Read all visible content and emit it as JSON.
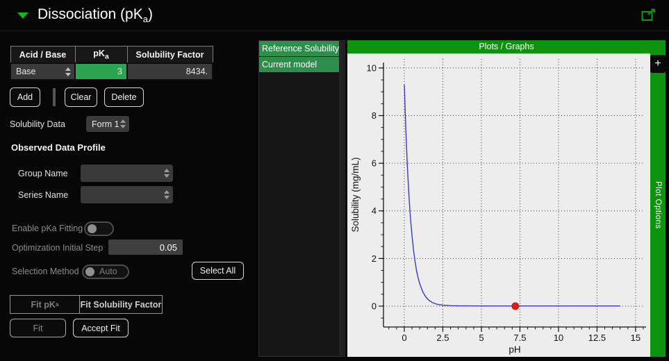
{
  "window": {
    "title_prefix": "Dissociation (pK",
    "title_sub": "a",
    "title_suffix": ")"
  },
  "left_panel": {
    "table": {
      "col_acid_base": "Acid / Base",
      "col_pka_prefix": "pK",
      "col_pka_sub": "a",
      "col_solubility_factor": "Solubility Factor",
      "rows": [
        {
          "acid_base": "Base",
          "pka": "3",
          "solubility_factor": "8434."
        }
      ]
    },
    "add_button": "Add",
    "clear_button": "Clear",
    "delete_button": "Delete",
    "solubility_data_label": "Solubility Data",
    "solubility_data_value": "Form 1",
    "observed_heading": "Observed Data Profile",
    "group_name_label": "Group Name",
    "group_name_value": "",
    "series_name_label": "Series Name",
    "series_name_value": "",
    "enable_pka_label": "Enable pKa Fitting",
    "opt_step_label": "Optimization Initial Step",
    "opt_step_value": "0.05",
    "selection_method_label": "Selection Method",
    "selection_method_value": "Auto",
    "select_all_button": "Select All",
    "fit_pka_tab_prefix": "Fit pK",
    "fit_pka_tab_sub": "a",
    "fit_sf_tab": "Fit Solubility Factor",
    "fit_button": "Fit",
    "accept_fit_button": "Accept Fit"
  },
  "model_list": {
    "items": [
      {
        "label": "Reference Solubility",
        "selected": true
      },
      {
        "label": "Current model",
        "selected": true
      }
    ]
  },
  "plot_panel": {
    "header": "Plots / Graphs",
    "add_plot_button": "+",
    "options_label": "Plot Options"
  },
  "colors": {
    "accent_green": "#0e930e",
    "selection_green": "#2e8f4d",
    "table_cell_green": "#2da450",
    "plot_bg": "#ededed",
    "curve_blue": "#3a3ac0",
    "point_red": "#d41f1f"
  },
  "chart_data": {
    "type": "line",
    "title": "",
    "xlabel": "pH",
    "ylabel": "Solubility (mg/mL)",
    "xlim": [
      -1.35,
      15.68
    ],
    "ylim": [
      -0.875,
      10.23
    ],
    "xticks": [
      0,
      2.5,
      5,
      7.5,
      10,
      12.5,
      15
    ],
    "yticks": [
      0,
      2,
      4,
      6,
      8,
      10
    ],
    "x_minor_step": 0.5,
    "y_minor_step": 0.5,
    "grid": "dotted",
    "legend": "none",
    "series": [
      {
        "name": "Current model",
        "type": "line",
        "color": "#3a3ac0",
        "points": [
          [
            0,
            9.3
          ],
          [
            0.1,
            7.39
          ],
          [
            0.2,
            5.87
          ],
          [
            0.3,
            4.67
          ],
          [
            0.4,
            3.71
          ],
          [
            0.5,
            2.95
          ],
          [
            0.6,
            2.34
          ],
          [
            0.7,
            1.86
          ],
          [
            0.8,
            1.48
          ],
          [
            0.9,
            1.18
          ],
          [
            1.0,
            0.94
          ],
          [
            1.2,
            0.6
          ],
          [
            1.4,
            0.38
          ],
          [
            1.6,
            0.24
          ],
          [
            1.8,
            0.16
          ],
          [
            2.0,
            0.1
          ],
          [
            2.25,
            0.063
          ],
          [
            2.5,
            0.039
          ],
          [
            3.0,
            0.019
          ],
          [
            3.5,
            0.012
          ],
          [
            4.0,
            0.01
          ],
          [
            5.0,
            0.009
          ],
          [
            7.0,
            0.009
          ],
          [
            9.0,
            0.009
          ],
          [
            11.0,
            0.009
          ],
          [
            14.0,
            0.009
          ]
        ]
      },
      {
        "name": "Reference Solubility",
        "type": "scatter",
        "marker": "circle",
        "color": "#d41f1f",
        "points": [
          [
            7.2,
            0.0
          ]
        ]
      }
    ]
  }
}
